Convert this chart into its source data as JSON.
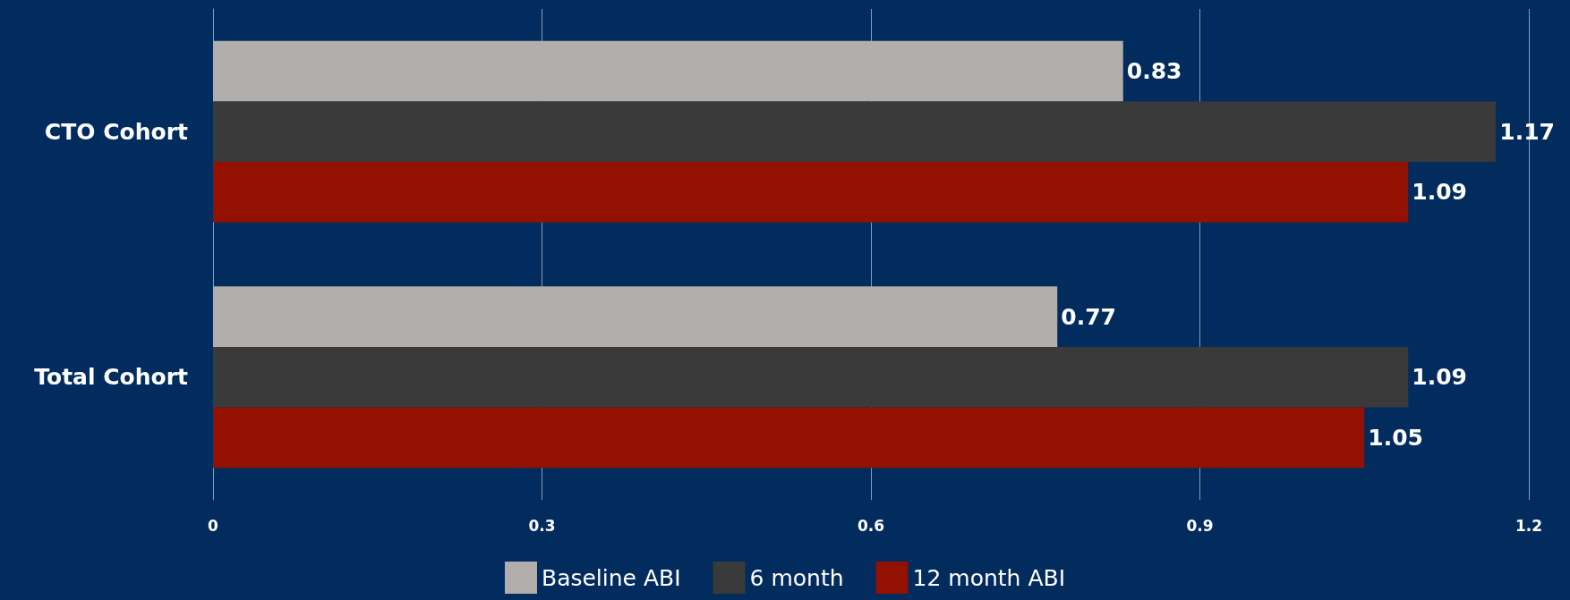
{
  "chart_data": {
    "type": "bar",
    "orientation": "horizontal",
    "categories": [
      "CTO Cohort",
      "Total Cohort"
    ],
    "series": [
      {
        "name": "Baseline ABI",
        "color": "#b0adab",
        "values": [
          0.83,
          0.77
        ]
      },
      {
        "name": "6 month",
        "color": "#3a3a3a",
        "values": [
          1.17,
          1.09
        ]
      },
      {
        "name": "12 month ABI",
        "color": "#931100",
        "values": [
          1.09,
          1.05
        ]
      }
    ],
    "xlim": [
      0,
      1.2
    ],
    "xticks": [
      0,
      0.3,
      0.6,
      0.9,
      1.2
    ],
    "grid": "x",
    "legend": "bottom",
    "data_labels": true
  }
}
